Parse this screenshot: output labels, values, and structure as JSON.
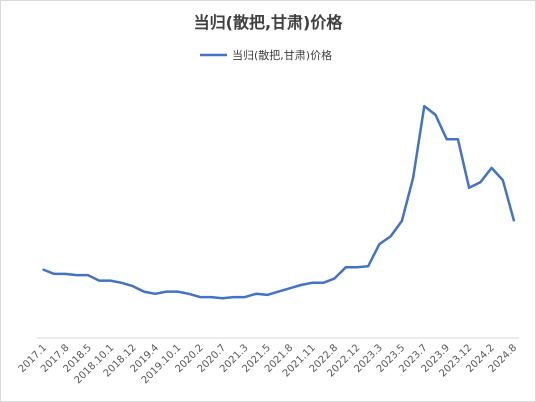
{
  "chart_data": {
    "type": "line",
    "title": "当归(散把,甘肃)价格",
    "legend_position": "top",
    "grid": false,
    "y_axis_visible": false,
    "ylim": [
      0,
      230
    ],
    "colors": {
      "series": "#4472C4",
      "axis": "#d9d9d9"
    },
    "x_tick_labels": [
      "2017.1",
      "2017.8",
      "2018.5",
      "2018.10.1",
      "2018.12",
      "2019.4",
      "2019.10.1",
      "2020.2",
      "2020.7",
      "2021.3",
      "2021.5",
      "2021.8",
      "2021.11",
      "2022.8",
      "2022.12",
      "2023.3",
      "2023.5",
      "2023.7",
      "2023.9",
      "2023.12",
      "2024.2",
      "2024.8"
    ],
    "series": [
      {
        "name": "当归(散把,甘肃)价格",
        "values": [
          62,
          58,
          58,
          57,
          57,
          52,
          52,
          50,
          47,
          42,
          40,
          42,
          42,
          40,
          37,
          37,
          36,
          37,
          37,
          40,
          39,
          42,
          45,
          48,
          50,
          50,
          54,
          64,
          64,
          65,
          85,
          92,
          106,
          145,
          210,
          202,
          180,
          180,
          136,
          141,
          154,
          143,
          106
        ]
      }
    ]
  }
}
